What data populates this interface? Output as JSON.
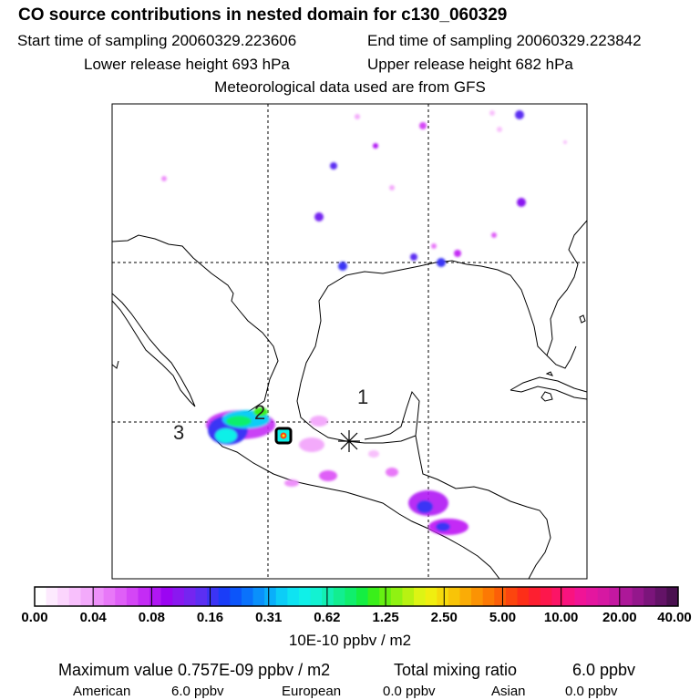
{
  "header": {
    "title": "CO  source contributions in nested domain for c130_060329",
    "start_time": "Start time of sampling 20060329.223606",
    "end_time": "End time of sampling 20060329.223842",
    "lower_release": "Lower release height  693 hPa",
    "upper_release": "Upper release height  682 hPa",
    "met_data": "Meteorological data used are from GFS"
  },
  "map": {
    "labels": {
      "one": "1",
      "two": "2",
      "three": "3"
    },
    "colors": {
      "coast": "#000000",
      "grid": "#000000",
      "frame": "#000000"
    }
  },
  "colorbar": {
    "ticks": [
      "0.00",
      "0.04",
      "0.08",
      "0.16",
      "0.31",
      "0.62",
      "1.25",
      "2.50",
      "5.00",
      "10.00",
      "20.00",
      "40.00"
    ],
    "colors": [
      "#ffffff",
      "#fdeafe",
      "#fbd5fd",
      "#f8c0fc",
      "#f3aafb",
      "#ee90fa",
      "#e878f8",
      "#df5ff7",
      "#d446f6",
      "#c42cf5",
      "#b016f4",
      "#9b05f2",
      "#8a18f0",
      "#7525f0",
      "#5c2ff2",
      "#3b34f5",
      "#1a3df8",
      "#0c55fa",
      "#0a72fb",
      "#0a90fb",
      "#0aaffa",
      "#0ccdf7",
      "#0ee3f2",
      "#10f0e8",
      "#13f2d2",
      "#13f0b3",
      "#12ee90",
      "#10ee6c",
      "#14ee42",
      "#3aef1a",
      "#66f012",
      "#90f212",
      "#b8f212",
      "#ddf414",
      "#f0ee10",
      "#f5da0c",
      "#f8c408",
      "#faac06",
      "#fb9304",
      "#fc7904",
      "#fc5f08",
      "#fc450e",
      "#fd2e18",
      "#fd1f30",
      "#fd174c",
      "#fc1466",
      "#f9137f",
      "#f01496",
      "#e4169f",
      "#d618a2",
      "#c418a1",
      "#ad1899",
      "#94178c",
      "#7b157b",
      "#631367",
      "#4a1050"
    ],
    "units": "10E-10 ppbv / m2"
  },
  "footer": {
    "max_label": "Maximum value  0.757E-09 ppbv / m2",
    "total_label": "Total mixing ratio",
    "total_value": "6.0 ppbv",
    "sources": [
      {
        "name": "American",
        "value": "6.0 ppbv"
      },
      {
        "name": "European",
        "value": "0.0 ppbv"
      },
      {
        "name": "Asian",
        "value": "0.0 ppbv"
      }
    ]
  }
}
